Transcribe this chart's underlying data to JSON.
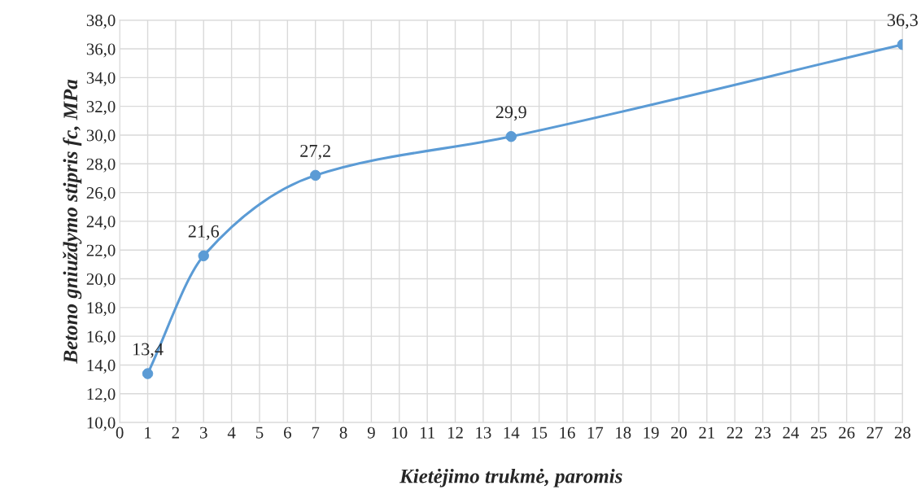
{
  "chart_data": {
    "type": "line",
    "xlabel": "Kietėjimo trukmė, paromis",
    "ylabel": "Betono gniuždymo stipris fc, MPa",
    "x": [
      1,
      3,
      7,
      14,
      28
    ],
    "series": [
      {
        "color": "#5b9bd5",
        "values": [
          13.4,
          21.6,
          27.2,
          29.9,
          36.3
        ],
        "value_labels": [
          "13,4",
          "21,6",
          "27,2",
          "29,9",
          "36,3"
        ]
      }
    ],
    "xlim": [
      0,
      28
    ],
    "xticks": [
      0,
      1,
      2,
      3,
      4,
      5,
      6,
      7,
      8,
      9,
      10,
      11,
      12,
      13,
      14,
      15,
      16,
      17,
      18,
      19,
      20,
      21,
      22,
      23,
      24,
      25,
      26,
      27,
      28
    ],
    "ylim": [
      10,
      38
    ],
    "yticks": [
      {
        "value": 10,
        "label": "10,0"
      },
      {
        "value": 12,
        "label": "12,0"
      },
      {
        "value": 14,
        "label": "14,0"
      },
      {
        "value": 16,
        "label": "16,0"
      },
      {
        "value": 18,
        "label": "18,0"
      },
      {
        "value": 20,
        "label": "20,0"
      },
      {
        "value": 22,
        "label": "22,0"
      },
      {
        "value": 24,
        "label": "24,0"
      },
      {
        "value": 26,
        "label": "26,0"
      },
      {
        "value": 28,
        "label": "28,0"
      },
      {
        "value": 30,
        "label": "30,0"
      },
      {
        "value": 32,
        "label": "32,0"
      },
      {
        "value": 34,
        "label": "34,0"
      },
      {
        "value": 36,
        "label": "36,0"
      },
      {
        "value": 38,
        "label": "38,0"
      }
    ],
    "grid": true,
    "marker": "circle",
    "line_style": "solid",
    "legend": false
  }
}
